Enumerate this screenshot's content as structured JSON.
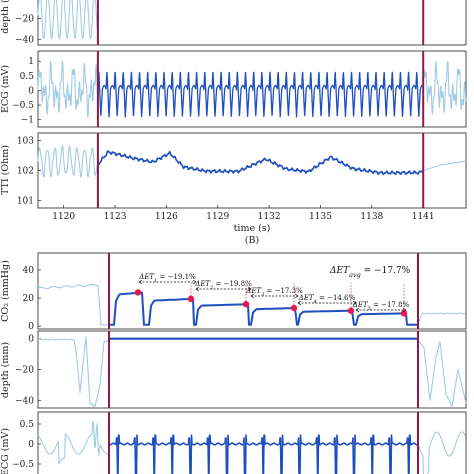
{
  "chart_data": [
    {
      "type": "line",
      "panel": "A-depth",
      "ylabel": "depth (m",
      "yticks": [
        -20,
        -40
      ],
      "ylim": [
        -45,
        5
      ],
      "xlim": [
        1118.5,
        1143.5
      ],
      "event_lines": [
        1122,
        1141
      ],
      "series": [
        {
          "style": "context",
          "segment": "before",
          "x_range": [
            1118.5,
            1122
          ],
          "waveform": "chest-compression",
          "center": -17,
          "amplitude": 22
        }
      ]
    },
    {
      "type": "line",
      "panel": "A-ecg",
      "ylabel": "ECG (mV)",
      "yticks": [
        1,
        0.5,
        0,
        -0.5,
        -1
      ],
      "ylim": [
        -1.25,
        1.35
      ],
      "xlim": [
        1118.5,
        1143.5
      ],
      "event_lines": [
        1122,
        1141
      ],
      "series": [
        {
          "style": "context",
          "segment": "before",
          "x_range": [
            1118.5,
            1122
          ],
          "waveform": "cpr-artifact"
        },
        {
          "style": "analysis",
          "segment": "pause",
          "x_range": [
            1122,
            1141
          ],
          "waveform": "vf-rhythm",
          "peak": 0.62,
          "trough": -0.9
        },
        {
          "style": "context",
          "segment": "after",
          "x_range": [
            1141,
            1143.5
          ],
          "waveform": "cpr-artifact"
        }
      ]
    },
    {
      "type": "line",
      "panel": "A-tti",
      "ylabel": "TTI (Ohm)",
      "xlabel": "time (s)",
      "yticks": [
        103,
        102,
        101
      ],
      "ylim": [
        100.75,
        103.25
      ],
      "xlim": [
        1118.5,
        1143.5
      ],
      "xticks": [
        1120,
        1123,
        1126,
        1129,
        1132,
        1135,
        1138,
        1141
      ],
      "event_lines": [
        1122,
        1141
      ],
      "series": [
        {
          "style": "context",
          "segment": "before",
          "x_range": [
            1118.5,
            1122
          ],
          "waveform": "cpr-impedance",
          "center": 102.3,
          "amplitude": 0.45
        },
        {
          "style": "analysis",
          "segment": "pause",
          "x": [
            1122,
            1122.6,
            1124,
            1125.2,
            1126.2,
            1127,
            1128.3,
            1130.2,
            1131.8,
            1133,
            1134.3,
            1135.6,
            1136.9,
            1138.5,
            1140.8,
            1141
          ],
          "y": [
            102.2,
            102.62,
            102.42,
            102.28,
            102.58,
            102.12,
            101.98,
            101.97,
            102.38,
            102.05,
            101.96,
            102.45,
            102.06,
            101.92,
            101.93,
            102.0
          ]
        },
        {
          "style": "context",
          "segment": "after",
          "x": [
            1141,
            1142,
            1143.5
          ],
          "y": [
            102.0,
            102.18,
            102.32
          ]
        }
      ]
    },
    {
      "type": "line",
      "panel": "B-co2",
      "caption": "(B)",
      "ylabel": "CO₂ (mmHg)",
      "yticks": [
        40,
        20,
        0
      ],
      "ylim": [
        -2,
        52
      ],
      "event_lines": [
        "pause-start",
        "pause-end"
      ],
      "series": [
        {
          "style": "context",
          "segment": "before",
          "level": 27
        },
        {
          "style": "analysis",
          "segment": "pause",
          "waveform": "capnogram",
          "breath_peaks": [
            24,
            19.4,
            15.6,
            12.9,
            11.0,
            9.1
          ]
        },
        {
          "style": "context",
          "segment": "after",
          "level": 9
        }
      ],
      "annotations": {
        "average": "ΔET",
        "average_sub": "avg",
        "average_value": " = −17.7%",
        "deltas": [
          {
            "label": "ΔET",
            "sub": "1",
            "value": " = −19.1%"
          },
          {
            "label": "ΔET",
            "sub": "2",
            "value": " = −19.8%"
          },
          {
            "label": "ΔET",
            "sub": "3",
            "value": " = −17.3%"
          },
          {
            "label": "ΔET",
            "sub": "4",
            "value": " = −14.6%"
          },
          {
            "label": "ΔET",
            "sub": "5",
            "value": " = −17.8%"
          }
        ]
      }
    },
    {
      "type": "line",
      "panel": "B-depth",
      "ylabel": "depth (mm)",
      "yticks": [
        0,
        -20,
        -40
      ],
      "ylim": [
        -45,
        5
      ],
      "event_lines": [
        "pause-start",
        "pause-end"
      ],
      "series": [
        {
          "style": "context",
          "segment": "before",
          "waveform": "compression"
        },
        {
          "style": "analysis",
          "segment": "pause",
          "level": 0
        },
        {
          "style": "context",
          "segment": "after",
          "waveform": "compression"
        }
      ]
    },
    {
      "type": "line",
      "panel": "B-ecg",
      "ylabel": "ECG (mV)",
      "yticks": [
        0.5,
        0,
        -0.5
      ],
      "ylim": [
        -1,
        0.8
      ],
      "event_lines": [
        "pause-start",
        "pause-end"
      ],
      "series": [
        {
          "style": "context",
          "segment": "before",
          "waveform": "cpr-artifact"
        },
        {
          "style": "analysis",
          "segment": "pause",
          "waveform": "qrs-beats",
          "beats": 17
        },
        {
          "style": "context",
          "segment": "after",
          "waveform": "cpr-artifact"
        }
      ]
    }
  ],
  "colors": {
    "analysis": "#1f4fbf",
    "context": "#9fcbe6",
    "event_line": "#8b1a4a",
    "marker": "#e8174f",
    "axis": "#222222"
  }
}
